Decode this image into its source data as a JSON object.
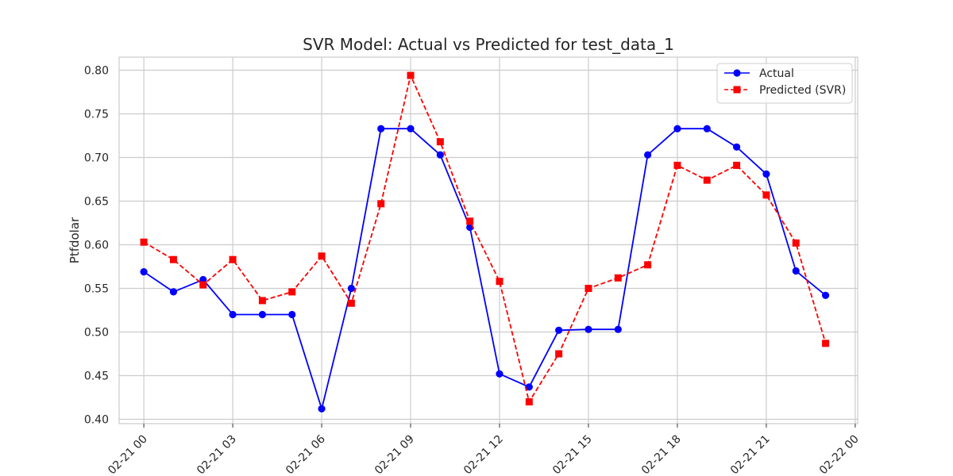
{
  "chart_data": {
    "type": "line",
    "title": "SVR Model: Actual vs Predicted for test_data_1",
    "xlabel": "",
    "ylabel": "Ptfdolar",
    "x": [
      "02-21 00",
      "02-21 01",
      "02-21 02",
      "02-21 03",
      "02-21 04",
      "02-21 05",
      "02-21 06",
      "02-21 07",
      "02-21 08",
      "02-21 09",
      "02-21 10",
      "02-21 11",
      "02-21 12",
      "02-21 13",
      "02-21 14",
      "02-21 15",
      "02-21 16",
      "02-21 17",
      "02-21 18",
      "02-21 19",
      "02-21 20",
      "02-21 21",
      "02-21 22",
      "02-21 23"
    ],
    "xticks": [
      "02-21 00",
      "02-21 03",
      "02-21 06",
      "02-21 09",
      "02-21 12",
      "02-21 15",
      "02-21 18",
      "02-21 21",
      "02-22 00"
    ],
    "xlim": [
      "02-20 23:10",
      "02-22 00:05"
    ],
    "ylim": [
      0.395,
      0.815
    ],
    "yticks": [
      "0.40",
      "0.45",
      "0.50",
      "0.55",
      "0.60",
      "0.65",
      "0.70",
      "0.75",
      "0.80"
    ],
    "grid": true,
    "legend": "top-right",
    "series": [
      {
        "name": "Actual",
        "color": "#0000ff",
        "style": "solid",
        "marker": "circle",
        "values": [
          0.569,
          0.546,
          0.56,
          0.52,
          0.52,
          0.52,
          0.412,
          0.55,
          0.733,
          0.733,
          0.703,
          0.62,
          0.452,
          0.437,
          0.502,
          0.503,
          0.503,
          0.703,
          0.733,
          0.733,
          0.712,
          0.681,
          0.57,
          0.542
        ]
      },
      {
        "name": "Predicted (SVR)",
        "color": "#ff0000",
        "style": "dashed",
        "marker": "square",
        "values": [
          0.603,
          0.583,
          0.554,
          0.583,
          0.536,
          0.546,
          0.587,
          0.533,
          0.647,
          0.794,
          0.718,
          0.627,
          0.558,
          0.42,
          0.475,
          0.55,
          0.562,
          0.577,
          0.691,
          0.674,
          0.691,
          0.657,
          0.602,
          0.487
        ]
      }
    ]
  }
}
